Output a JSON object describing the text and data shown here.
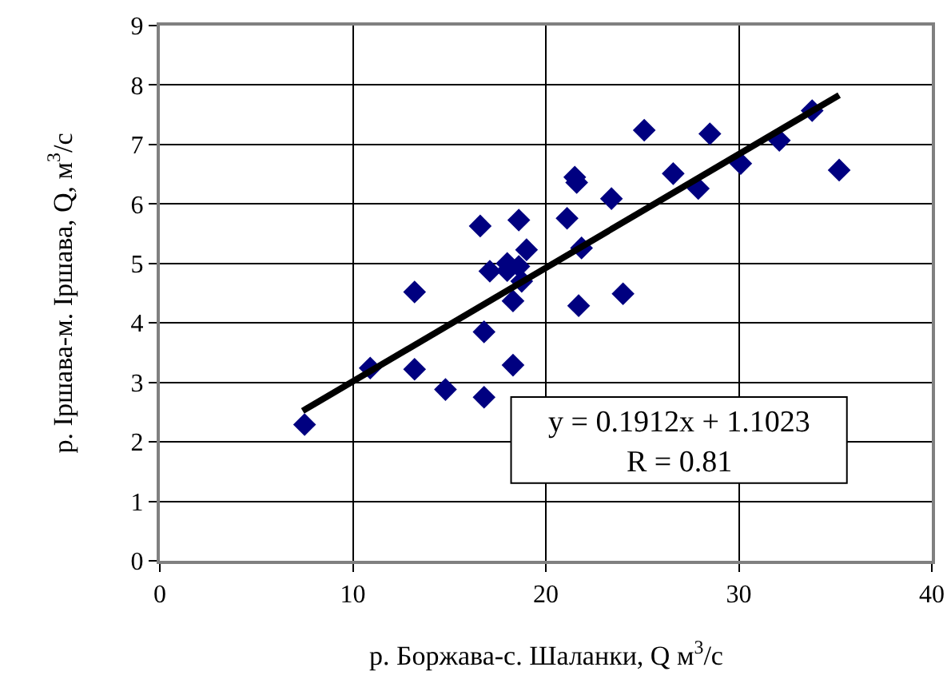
{
  "chart_data": {
    "type": "scatter",
    "xlabel": "р. Боржава-с. Шаланки, Q м$^{3}$/с",
    "ylabel": "р. Іршава-м. Іршава, Q, м$^{3}$/с",
    "xlim": [
      0,
      40
    ],
    "xticks": [
      0,
      10,
      20,
      30,
      40
    ],
    "ylim": [
      0,
      9
    ],
    "yticks": [
      0,
      1,
      2,
      3,
      4,
      5,
      6,
      7,
      8,
      9
    ],
    "grid": true,
    "series": [
      {
        "marker": "diamond",
        "color": "#000080",
        "x": [
          7.5,
          10.9,
          13.2,
          13.2,
          14.8,
          16.8,
          16.8,
          16.6,
          18.6,
          19.0,
          17.1,
          18.0,
          18.6,
          18.0,
          18.3,
          18.75,
          18.3,
          21.6,
          21.5,
          21.1,
          23.4,
          21.85,
          21.7,
          24.0,
          25.1,
          28.5,
          26.6,
          27.9,
          30.1,
          32.1,
          33.8,
          35.2
        ],
        "values": [
          2.29,
          3.24,
          4.52,
          3.22,
          2.88,
          2.75,
          3.85,
          5.63,
          5.73,
          5.23,
          4.87,
          5.0,
          4.95,
          4.88,
          4.37,
          4.7,
          3.29,
          6.36,
          6.45,
          5.76,
          6.09,
          5.26,
          4.29,
          4.49,
          7.24,
          7.18,
          6.51,
          6.26,
          6.68,
          7.07,
          7.57,
          6.57
        ]
      },
      {
        "type": "line",
        "marker": "none",
        "color": "#000000",
        "x": [
          7.4,
          35.2
        ],
        "values": [
          2.52,
          7.83
        ]
      }
    ],
    "annotations": [
      "y = 0.1912x + 1.1023",
      "R = 0.81"
    ]
  }
}
